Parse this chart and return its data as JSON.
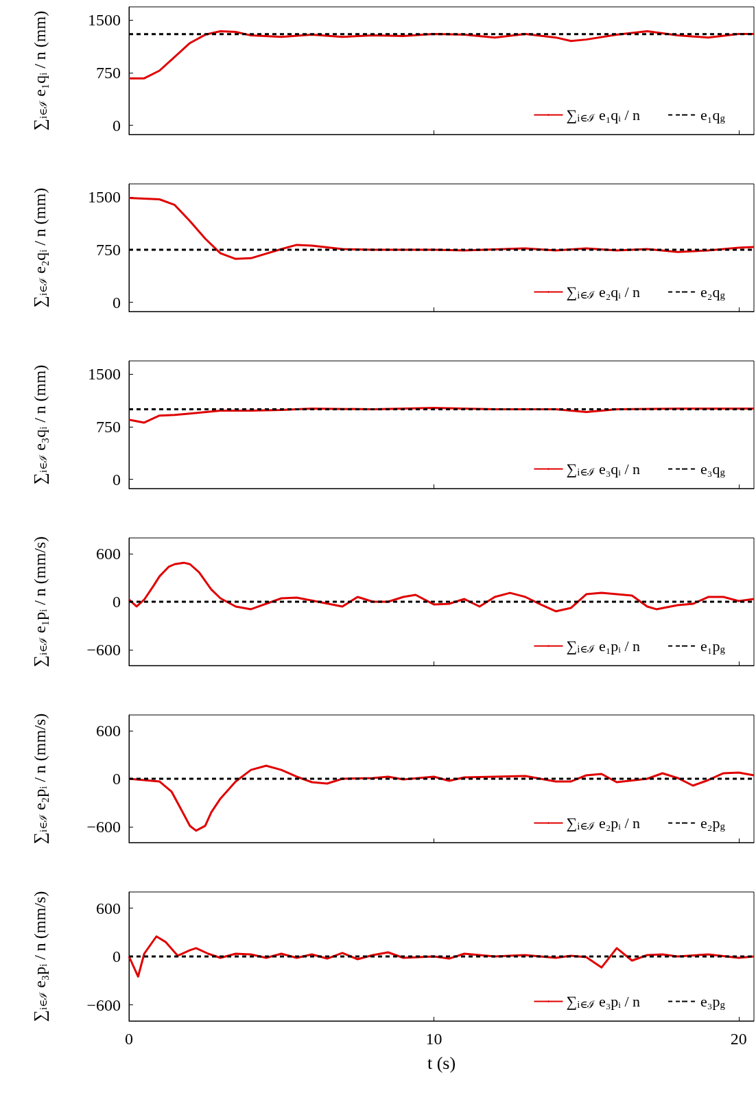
{
  "chart_data": [
    {
      "type": "line",
      "ylabel": "∑$_{i∈ℐ}$ e₁qᵢ / n (mm)",
      "xlim": [
        0,
        20.5
      ],
      "xticks": [
        0,
        10,
        20
      ],
      "ylim": [
        -130,
        1690
      ],
      "yticks": [
        0,
        750,
        1500
      ],
      "grid": false,
      "legend": "bottom right",
      "marker": "none",
      "tick_labels": "y",
      "series": [
        {
          "name": "∑$_{i∈ℐ}$ e₁qᵢ / n",
          "color": "#e00000",
          "line_style": "solid",
          "x": [
            0,
            0.5,
            1,
            1.5,
            2,
            2.5,
            3,
            3.5,
            4,
            5,
            6,
            7,
            8,
            9,
            10,
            11,
            12,
            13,
            14,
            14.5,
            15,
            16,
            17,
            18,
            19,
            20,
            20.5
          ],
          "values": [
            671,
            671,
            780,
            977,
            1174,
            1293,
            1342,
            1332,
            1283,
            1263,
            1293,
            1263,
            1283,
            1273,
            1303,
            1293,
            1253,
            1303,
            1253,
            1204,
            1224,
            1293,
            1342,
            1283,
            1253,
            1303,
            1303
          ]
        },
        {
          "name": "e₁q$_{g}$",
          "color": "#000000",
          "line_style": "dashed",
          "x": [
            0,
            20.5
          ],
          "values": [
            1300,
            1300
          ]
        }
      ]
    },
    {
      "type": "line",
      "ylabel": "∑$_{i∈ℐ}$ e₂qᵢ / n (mm)",
      "xlim": [
        0,
        20.5
      ],
      "xticks": [
        0,
        10,
        20
      ],
      "ylim": [
        -130,
        1690
      ],
      "yticks": [
        0,
        750,
        1500
      ],
      "grid": false,
      "legend": "bottom right",
      "marker": "none",
      "tick_labels": "y",
      "series": [
        {
          "name": "∑$_{i∈ℐ}$ e₂qᵢ / n",
          "color": "#e00000",
          "line_style": "solid",
          "x": [
            0,
            1,
            1.5,
            2,
            2.5,
            3,
            3.5,
            4,
            5,
            5.5,
            6,
            7,
            8,
            10,
            11,
            13,
            14,
            15,
            16,
            17,
            18,
            19,
            20,
            20.5
          ],
          "values": [
            1490,
            1470,
            1390,
            1160,
            910,
            700,
            620,
            630,
            760,
            820,
            810,
            760,
            750,
            750,
            740,
            770,
            740,
            770,
            740,
            760,
            720,
            740,
            780,
            790
          ]
        },
        {
          "name": "e₂q$_{g}$",
          "color": "#000000",
          "line_style": "dashed",
          "x": [
            0,
            20.5
          ],
          "values": [
            750,
            750
          ]
        }
      ]
    },
    {
      "type": "line",
      "ylabel": "∑$_{i∈ℐ}$ e₃qᵢ / n (mm)",
      "xlim": [
        0,
        20.5
      ],
      "xticks": [
        0,
        10,
        20
      ],
      "ylim": [
        -130,
        1690
      ],
      "yticks": [
        0,
        750,
        1500
      ],
      "grid": false,
      "legend": "bottom right",
      "marker": "none",
      "tick_labels": "y",
      "series": [
        {
          "name": "∑$_{i∈ℐ}$ e₃qᵢ / n",
          "color": "#e00000",
          "line_style": "solid",
          "x": [
            0,
            0.5,
            1,
            1.5,
            2,
            3,
            4,
            5,
            6,
            8,
            10,
            12,
            14,
            15,
            16,
            18,
            20,
            20.5
          ],
          "values": [
            850,
            810,
            910,
            920,
            940,
            980,
            980,
            990,
            1010,
            1000,
            1020,
            1000,
            1000,
            960,
            1000,
            1010,
            1010,
            1010
          ]
        },
        {
          "name": "e₃q$_{g}$",
          "color": "#000000",
          "line_style": "dashed",
          "x": [
            0,
            20.5
          ],
          "values": [
            1000,
            1000
          ]
        }
      ]
    },
    {
      "type": "line",
      "ylabel": "∑$_{i∈ℐ}$ e₁pᵢ / n (mm/s)",
      "xlim": [
        0,
        20.5
      ],
      "xticks": [
        0,
        10,
        20
      ],
      "ylim": [
        -800,
        800
      ],
      "yticks": [
        -600,
        0,
        600
      ],
      "grid": false,
      "legend": "bottom right",
      "marker": "none",
      "tick_labels": "y",
      "series": [
        {
          "name": "∑$_{i∈ℐ}$ e₁pᵢ / n",
          "color": "#e00000",
          "line_style": "solid",
          "x": [
            0,
            0.25,
            0.5,
            0.8,
            1,
            1.3,
            1.5,
            1.8,
            2,
            2.3,
            2.7,
            3,
            3.5,
            4,
            5,
            5.5,
            6.2,
            7,
            7.5,
            8,
            8.5,
            9,
            9.4,
            10,
            10.5,
            11,
            11.5,
            12,
            12.5,
            13,
            13.5,
            14,
            14.5,
            15,
            15.5,
            16,
            16.5,
            17,
            17.3,
            18,
            18.5,
            19,
            19.5,
            20,
            20.5
          ],
          "values": [
            26,
            -60,
            26,
            197,
            317,
            437,
            471,
            489,
            471,
            369,
            154,
            43,
            -60,
            -94,
            43,
            51,
            0,
            -60,
            60,
            0,
            0,
            60,
            86,
            -34,
            -26,
            34,
            -60,
            60,
            111,
            60,
            -34,
            -120,
            -77,
            94,
            111,
            94,
            77,
            -60,
            -94,
            -43,
            -26,
            60,
            60,
            9,
            34
          ]
        },
        {
          "name": "e₁p$_{g}$",
          "color": "#000000",
          "line_style": "dashed",
          "x": [
            0,
            20.5
          ],
          "values": [
            0,
            0
          ]
        }
      ]
    },
    {
      "type": "line",
      "ylabel": "∑$_{i∈ℐ}$ e₂pᵢ / n (mm/s)",
      "xlim": [
        0,
        20.5
      ],
      "xticks": [
        0,
        10,
        20
      ],
      "ylim": [
        -800,
        800
      ],
      "yticks": [
        -600,
        0,
        600
      ],
      "grid": false,
      "legend": "bottom right",
      "marker": "none",
      "tick_labels": "y",
      "series": [
        {
          "name": "∑$_{i∈ℐ}$ e₂pᵢ / n",
          "color": "#e00000",
          "line_style": "solid",
          "x": [
            0,
            0.5,
            1,
            1.4,
            1.7,
            2,
            2.2,
            2.5,
            2.7,
            3,
            3.5,
            4,
            4.5,
            5,
            5.5,
            6,
            6.5,
            7,
            8,
            8.5,
            9,
            10,
            10.5,
            11,
            12,
            13,
            14,
            14.5,
            15,
            15.5,
            16,
            17,
            17.5,
            18,
            18.5,
            19,
            19.5,
            20,
            20.5
          ],
          "values": [
            0,
            -17,
            -34,
            -163,
            -377,
            -591,
            -651,
            -591,
            -420,
            -249,
            -34,
            111,
            163,
            111,
            26,
            -43,
            -60,
            0,
            9,
            26,
            -9,
            26,
            -26,
            17,
            26,
            34,
            -34,
            -34,
            43,
            60,
            -43,
            0,
            69,
            9,
            -86,
            -17,
            69,
            77,
            43
          ]
        },
        {
          "name": "e₂p$_{g}$",
          "color": "#000000",
          "line_style": "dashed",
          "x": [
            0,
            20.5
          ],
          "values": [
            0,
            0
          ]
        }
      ]
    },
    {
      "type": "line",
      "xlabel": "t (s)",
      "ylabel": "∑$_{i∈ℐ}$ e₃pᵢ / n (mm/s)",
      "xlim": [
        0,
        20.5
      ],
      "xticks": [
        0,
        10,
        20
      ],
      "ylim": [
        -800,
        800
      ],
      "yticks": [
        -600,
        0,
        600
      ],
      "grid": false,
      "legend": "bottom right",
      "marker": "none",
      "series": [
        {
          "name": "∑$_{i∈ℐ}$ e₃pᵢ / n",
          "color": "#e00000",
          "line_style": "solid",
          "x": [
            0,
            0.3,
            0.5,
            0.9,
            1.2,
            1.6,
            2,
            2.2,
            2.6,
            3,
            3.5,
            4,
            4.5,
            5,
            5.5,
            6,
            6.5,
            7,
            7.5,
            8,
            8.5,
            9,
            10,
            10.5,
            11,
            12,
            13,
            14,
            14.5,
            15,
            15.5,
            16,
            16.5,
            17,
            17.5,
            18,
            19,
            20,
            20.5
          ],
          "values": [
            0,
            -249,
            34,
            249,
            180,
            9,
            77,
            103,
            34,
            -17,
            34,
            26,
            -17,
            34,
            -17,
            26,
            -26,
            43,
            -34,
            17,
            51,
            -17,
            0,
            -26,
            34,
            0,
            17,
            -17,
            9,
            -9,
            -137,
            103,
            -51,
            17,
            26,
            0,
            26,
            -17,
            0
          ]
        },
        {
          "name": "e₃p$_{g}$",
          "color": "#000000",
          "line_style": "dashed",
          "x": [
            0,
            20.5
          ],
          "values": [
            0,
            0
          ]
        }
      ]
    }
  ]
}
